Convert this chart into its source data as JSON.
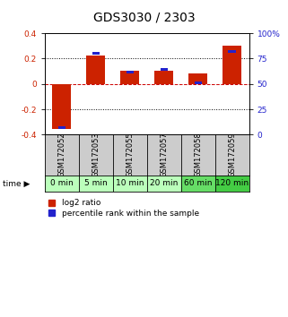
{
  "title": "GDS3030 / 2303",
  "samples": [
    "GSM172052",
    "GSM172053",
    "GSM172055",
    "GSM172057",
    "GSM172058",
    "GSM172059"
  ],
  "time_labels": [
    "0 min",
    "5 min",
    "10 min",
    "20 min",
    "60 min",
    "120 min"
  ],
  "log2_ratio": [
    -0.355,
    0.225,
    0.105,
    0.105,
    0.085,
    0.305
  ],
  "percentile_rank": [
    7,
    80,
    62,
    64,
    51,
    82
  ],
  "ylim_left": [
    -0.4,
    0.4
  ],
  "ylim_right": [
    0,
    100
  ],
  "bar_color_red": "#cc2200",
  "bar_color_blue": "#2222cc",
  "dashed_zero_color": "#cc0000",
  "bg_plot": "#ffffff",
  "bg_label_row": "#cccccc",
  "bg_time_row_colors": [
    "#bbffbb",
    "#bbffbb",
    "#bbffbb",
    "#bbffbb",
    "#66dd66",
    "#44cc44"
  ],
  "title_fontsize": 10,
  "tick_fontsize": 6.5,
  "sample_fontsize": 6,
  "time_fontsize": 6.5,
  "legend_fontsize": 6.5
}
